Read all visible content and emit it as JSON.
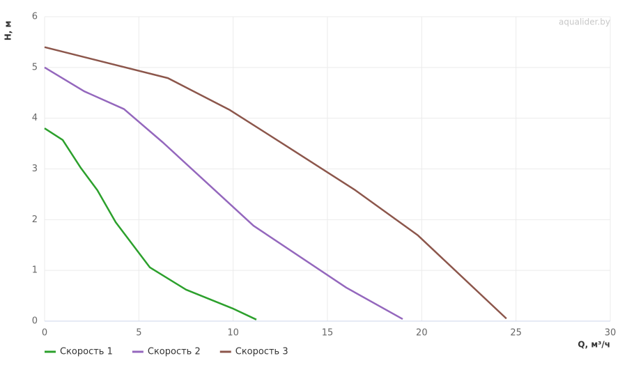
{
  "chart_data": {
    "type": "line",
    "watermark": "aqualider.by",
    "xlabel": "Q, м³/ч",
    "ylabel": "H, м",
    "xlim": [
      0,
      30
    ],
    "ylim": [
      0,
      6
    ],
    "xticks": [
      0,
      5,
      10,
      15,
      20,
      25,
      30
    ],
    "yticks": [
      0,
      1,
      2,
      3,
      4,
      5,
      6
    ],
    "grid": true,
    "legend": "bottom-left",
    "series": [
      {
        "name": "Скорость 1",
        "color": "#2ca02c",
        "x": [
          0,
          0.96,
          1.92,
          2.8,
          3.77,
          5.58,
          7.5,
          9.97,
          11.23
        ],
        "values": [
          3.8,
          3.57,
          3.02,
          2.58,
          1.95,
          1.06,
          0.62,
          0.25,
          0.03
        ]
      },
      {
        "name": "Скорость 2",
        "color": "#9467bd",
        "x": [
          0,
          2.1,
          4.21,
          6.28,
          11.08,
          16,
          18.99
        ],
        "values": [
          5.0,
          4.53,
          4.18,
          3.52,
          1.88,
          0.66,
          0.04
        ]
      },
      {
        "name": "Скорость 3",
        "color": "#8c564b",
        "x": [
          0,
          6.54,
          9.83,
          13.0,
          16.48,
          19.8,
          24.49
        ],
        "values": [
          5.4,
          4.79,
          4.16,
          3.41,
          2.58,
          1.69,
          0.05
        ]
      }
    ]
  }
}
